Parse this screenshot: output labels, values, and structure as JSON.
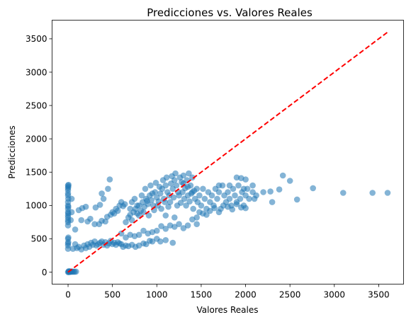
{
  "chart_data": {
    "type": "scatter",
    "title": "Predicciones vs. Valores Reales",
    "xlabel": "Valores Reales",
    "ylabel": "Predicciones",
    "xlim": [
      -180,
      3780
    ],
    "ylim": [
      -180,
      3780
    ],
    "xticks": [
      0,
      500,
      1000,
      1500,
      2000,
      2500,
      3000,
      3500
    ],
    "yticks": [
      0,
      500,
      1000,
      1500,
      2000,
      2500,
      3000,
      3500
    ],
    "grid": false,
    "legend": "none",
    "colors": {
      "points": "#1f77b4",
      "reference_line": "#ff0000"
    },
    "reference_line": {
      "style": "dashed",
      "from": [
        0,
        0
      ],
      "to": [
        3600,
        3600
      ]
    },
    "series": [
      {
        "points": [
          [
            0,
            0
          ],
          [
            5,
            2
          ],
          [
            10,
            5
          ],
          [
            15,
            8
          ],
          [
            20,
            3
          ],
          [
            25,
            10
          ],
          [
            8,
            15
          ],
          [
            30,
            5
          ],
          [
            40,
            10
          ],
          [
            50,
            5
          ],
          [
            60,
            8
          ],
          [
            75,
            5
          ],
          [
            90,
            8
          ],
          [
            0,
            350
          ],
          [
            0,
            400
          ],
          [
            0,
            430
          ],
          [
            2,
            450
          ],
          [
            0,
            500
          ],
          [
            3,
            520
          ],
          [
            0,
            700
          ],
          [
            0,
            750
          ],
          [
            0,
            780
          ],
          [
            0,
            820
          ],
          [
            0,
            850
          ],
          [
            2,
            880
          ],
          [
            0,
            900
          ],
          [
            0,
            950
          ],
          [
            3,
            980
          ],
          [
            0,
            1000
          ],
          [
            0,
            1050
          ],
          [
            2,
            1100
          ],
          [
            0,
            1150
          ],
          [
            0,
            1180
          ],
          [
            0,
            1230
          ],
          [
            0,
            1260
          ],
          [
            3,
            1280
          ],
          [
            0,
            1300
          ],
          [
            5,
            1310
          ],
          [
            40,
            900
          ],
          [
            40,
            1100
          ],
          [
            30,
            780
          ],
          [
            55,
            350
          ],
          [
            80,
            420
          ],
          [
            100,
            360
          ],
          [
            120,
            380
          ],
          [
            150,
            340
          ],
          [
            180,
            400
          ],
          [
            200,
            360
          ],
          [
            220,
            420
          ],
          [
            240,
            380
          ],
          [
            260,
            440
          ],
          [
            280,
            410
          ],
          [
            300,
            460
          ],
          [
            320,
            400
          ],
          [
            340,
            420
          ],
          [
            360,
            440
          ],
          [
            380,
            460
          ],
          [
            400,
            410
          ],
          [
            420,
            450
          ],
          [
            440,
            400
          ],
          [
            460,
            430
          ],
          [
            480,
            470
          ],
          [
            500,
            420
          ],
          [
            520,
            440
          ],
          [
            540,
            410
          ],
          [
            560,
            450
          ],
          [
            580,
            430
          ],
          [
            600,
            420
          ],
          [
            620,
            380
          ],
          [
            650,
            400
          ],
          [
            680,
            390
          ],
          [
            720,
            410
          ],
          [
            760,
            380
          ],
          [
            800,
            400
          ],
          [
            850,
            430
          ],
          [
            880,
            420
          ],
          [
            920,
            470
          ],
          [
            950,
            460
          ],
          [
            1000,
            500
          ],
          [
            1040,
            460
          ],
          [
            1100,
            480
          ],
          [
            1180,
            440
          ],
          [
            80,
            640
          ],
          [
            120,
            930
          ],
          [
            160,
            960
          ],
          [
            200,
            980
          ],
          [
            150,
            780
          ],
          [
            220,
            760
          ],
          [
            250,
            800
          ],
          [
            300,
            720
          ],
          [
            310,
            970
          ],
          [
            350,
            720
          ],
          [
            380,
            770
          ],
          [
            420,
            760
          ],
          [
            440,
            830
          ],
          [
            480,
            860
          ],
          [
            500,
            900
          ],
          [
            520,
            880
          ],
          [
            540,
            950
          ],
          [
            560,
            920
          ],
          [
            580,
            1000
          ],
          [
            600,
            1050
          ],
          [
            620,
            990
          ],
          [
            640,
            1020
          ],
          [
            400,
            1100
          ],
          [
            450,
            1250
          ],
          [
            470,
            1390
          ],
          [
            380,
            1180
          ],
          [
            360,
            1010
          ],
          [
            650,
            750
          ],
          [
            680,
            820
          ],
          [
            700,
            860
          ],
          [
            720,
            780
          ],
          [
            740,
            900
          ],
          [
            760,
            950
          ],
          [
            780,
            880
          ],
          [
            800,
            1000
          ],
          [
            820,
            920
          ],
          [
            840,
            1050
          ],
          [
            860,
            980
          ],
          [
            880,
            1100
          ],
          [
            900,
            1020
          ],
          [
            920,
            1150
          ],
          [
            940,
            1080
          ],
          [
            960,
            1000
          ],
          [
            980,
            1200
          ],
          [
            1000,
            1120
          ],
          [
            1020,
            1060
          ],
          [
            1040,
            1180
          ],
          [
            1060,
            1250
          ],
          [
            1080,
            1100
          ],
          [
            1100,
            1300
          ],
          [
            1120,
            1200
          ],
          [
            1140,
            1150
          ],
          [
            1160,
            1330
          ],
          [
            1180,
            1250
          ],
          [
            1200,
            1380
          ],
          [
            1220,
            1300
          ],
          [
            1240,
            1200
          ],
          [
            1260,
            1420
          ],
          [
            1280,
            1350
          ],
          [
            1300,
            1450
          ],
          [
            1320,
            1260
          ],
          [
            1340,
            1380
          ],
          [
            1360,
            1480
          ],
          [
            1380,
            1300
          ],
          [
            1400,
            1420
          ],
          [
            1420,
            1220
          ],
          [
            700,
            950
          ],
          [
            720,
            1050
          ],
          [
            750,
            1100
          ],
          [
            780,
            1000
          ],
          [
            800,
            850
          ],
          [
            830,
            1150
          ],
          [
            850,
            900
          ],
          [
            870,
            1250
          ],
          [
            890,
            1070
          ],
          [
            910,
            850
          ],
          [
            930,
            1300
          ],
          [
            950,
            1180
          ],
          [
            970,
            930
          ],
          [
            990,
            1340
          ],
          [
            1010,
            1000
          ],
          [
            1030,
            1280
          ],
          [
            1050,
            950
          ],
          [
            1070,
            1380
          ],
          [
            1090,
            1050
          ],
          [
            1110,
            1420
          ],
          [
            1130,
            980
          ],
          [
            1150,
            1050
          ],
          [
            1170,
            1440
          ],
          [
            1190,
            1120
          ],
          [
            1210,
            1480
          ],
          [
            1230,
            1000
          ],
          [
            1250,
            1150
          ],
          [
            1270,
            1040
          ],
          [
            1290,
            1200
          ],
          [
            1310,
            1100
          ],
          [
            1330,
            1000
          ],
          [
            1350,
            1150
          ],
          [
            1370,
            1060
          ],
          [
            1390,
            1180
          ],
          [
            1410,
            950
          ],
          [
            1430,
            1100
          ],
          [
            1450,
            1250
          ],
          [
            1460,
            1050
          ],
          [
            1480,
            1150
          ],
          [
            1500,
            1000
          ],
          [
            1520,
            1250
          ],
          [
            1540,
            1100
          ],
          [
            1560,
            950
          ],
          [
            1580,
            1200
          ],
          [
            1600,
            1050
          ],
          [
            1620,
            1150
          ],
          [
            1640,
            1000
          ],
          [
            1660,
            1250
          ],
          [
            1680,
            1100
          ],
          [
            1700,
            1200
          ],
          [
            1720,
            950
          ],
          [
            1740,
            1300
          ],
          [
            1760,
            1150
          ],
          [
            1780,
            1050
          ],
          [
            1800,
            1200
          ],
          [
            1820,
            1100
          ],
          [
            1840,
            1000
          ],
          [
            1860,
            1250
          ],
          [
            1880,
            1150
          ],
          [
            1900,
            1050
          ],
          [
            1920,
            1300
          ],
          [
            1940,
            1100
          ],
          [
            1960,
            1200
          ],
          [
            1980,
            1000
          ],
          [
            2000,
            1150
          ],
          [
            2020,
            1250
          ],
          [
            2040,
            1100
          ],
          [
            2080,
            1300
          ],
          [
            1450,
            820
          ],
          [
            1480,
            900
          ],
          [
            1520,
            880
          ],
          [
            1560,
            860
          ],
          [
            1600,
            920
          ],
          [
            1650,
            960
          ],
          [
            1700,
            900
          ],
          [
            1750,
            1000
          ],
          [
            1800,
            980
          ],
          [
            1850,
            940
          ],
          [
            1900,
            1020
          ],
          [
            1950,
            970
          ],
          [
            2000,
            960
          ],
          [
            1400,
            1200
          ],
          [
            1350,
            1280
          ],
          [
            1300,
            1330
          ],
          [
            1900,
            1420
          ],
          [
            1950,
            1410
          ],
          [
            2000,
            1390
          ],
          [
            1700,
            1300
          ],
          [
            1820,
            1300
          ],
          [
            1980,
            1250
          ],
          [
            2080,
            1200
          ],
          [
            2120,
            1150
          ],
          [
            2200,
            1200
          ],
          [
            2280,
            1210
          ],
          [
            2380,
            1240
          ],
          [
            2420,
            1450
          ],
          [
            2500,
            1370
          ],
          [
            2580,
            1090
          ],
          [
            2760,
            1260
          ],
          [
            3100,
            1190
          ],
          [
            3430,
            1190
          ],
          [
            3600,
            1190
          ],
          [
            2300,
            1050
          ],
          [
            2100,
            1100
          ],
          [
            1450,
            720
          ],
          [
            1400,
            790
          ],
          [
            1350,
            700
          ],
          [
            1300,
            660
          ],
          [
            1250,
            720
          ],
          [
            1200,
            680
          ],
          [
            1150,
            700
          ],
          [
            1100,
            650
          ],
          [
            1050,
            690
          ],
          [
            1000,
            620
          ],
          [
            950,
            600
          ],
          [
            900,
            580
          ],
          [
            850,
            620
          ],
          [
            800,
            560
          ],
          [
            750,
            540
          ],
          [
            700,
            560
          ],
          [
            650,
            520
          ],
          [
            600,
            580
          ],
          [
            1100,
            850
          ],
          [
            1200,
            820
          ]
        ]
      }
    ]
  }
}
